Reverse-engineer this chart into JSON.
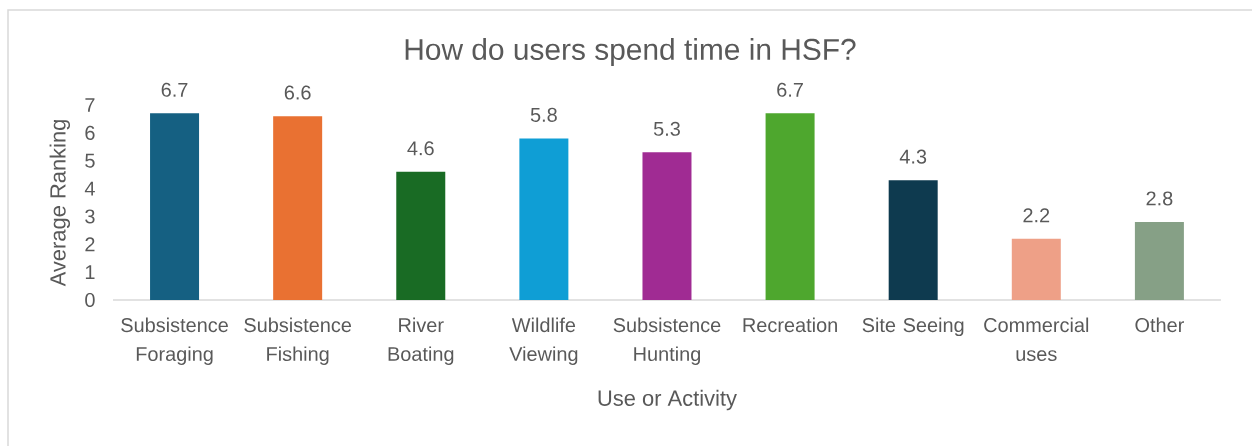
{
  "chart_data": {
    "type": "bar",
    "title": "How do users spend time in HSF?",
    "xlabel": "Use or Activity",
    "ylabel": "Average Ranking",
    "categories": [
      "Subsistence Foraging",
      "Subsistence Fishing",
      "River Boating",
      "Wildlife Viewing",
      "Subsistence Hunting",
      "Recreation",
      "Site Seeing",
      "Commercial uses",
      "Other"
    ],
    "values": [
      6.7,
      6.6,
      4.6,
      5.8,
      5.3,
      6.7,
      4.3,
      2.2,
      2.8
    ],
    "colors": [
      "#156082",
      "#e97132",
      "#196b24",
      "#0f9ed5",
      "#a02b93",
      "#4ea72e",
      "#0e3a4f",
      "#eea087",
      "#86a086"
    ],
    "ylim": [
      0,
      7
    ],
    "yticks": [
      0,
      1,
      2,
      3,
      4,
      5,
      6,
      7
    ],
    "data_labels": true
  }
}
